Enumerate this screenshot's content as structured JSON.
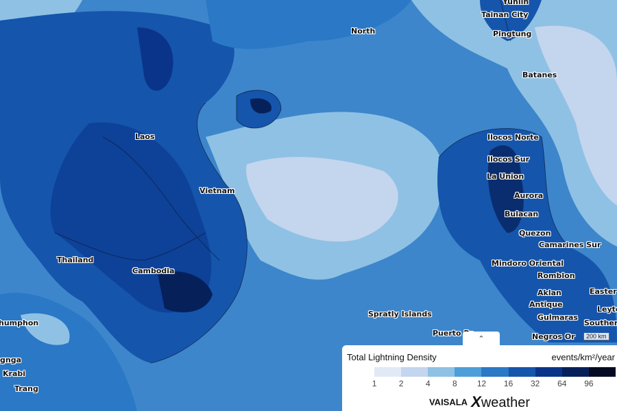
{
  "map": {
    "labels": [
      {
        "text": "Yunlin"
      },
      {
        "text": "Tainan City"
      },
      {
        "text": "Pingtung"
      },
      {
        "text": "North"
      },
      {
        "text": "Batanes"
      },
      {
        "text": "Laos"
      },
      {
        "text": "Vietnam"
      },
      {
        "text": "Thailand"
      },
      {
        "text": "Cambodia"
      },
      {
        "text": "Spratly Islands"
      },
      {
        "text": "Puerto Pr"
      },
      {
        "text": "Ilocos Norte"
      },
      {
        "text": "Ilocos Sur"
      },
      {
        "text": "La Union"
      },
      {
        "text": "Aurora"
      },
      {
        "text": "Bulacan"
      },
      {
        "text": "Quezon"
      },
      {
        "text": "Camarines Sur"
      },
      {
        "text": "Mindoro Oriental"
      },
      {
        "text": "Romblon"
      },
      {
        "text": "Aklan"
      },
      {
        "text": "Antique"
      },
      {
        "text": "Gulmaras"
      },
      {
        "text": "Negros Or"
      },
      {
        "text": "Easter"
      },
      {
        "text": "Leyte"
      },
      {
        "text": "Souther"
      },
      {
        "text": "humphon"
      },
      {
        "text": "gnga"
      },
      {
        "text": "Krabi"
      },
      {
        "text": "Trang"
      }
    ],
    "scale_label": "200 km"
  },
  "legend": {
    "toggle_icon": "double-chevron-up-icon",
    "toggle_glyph": "˄",
    "title": "Total Lightning Density",
    "unit": "events/km²/year",
    "ticks": [
      "1",
      "2",
      "4",
      "8",
      "12",
      "16",
      "32",
      "64",
      "96"
    ],
    "colors": [
      "#ffffff",
      "#e2e9f6",
      "#c4d5ee",
      "#8fc1e4",
      "#4d9ed9",
      "#2a78c6",
      "#1555ac",
      "#0a348a",
      "#06205a",
      "#030b22"
    ],
    "logo_brand": "VAISALA",
    "logo_product_x": "X",
    "logo_product_rest": "weather"
  }
}
